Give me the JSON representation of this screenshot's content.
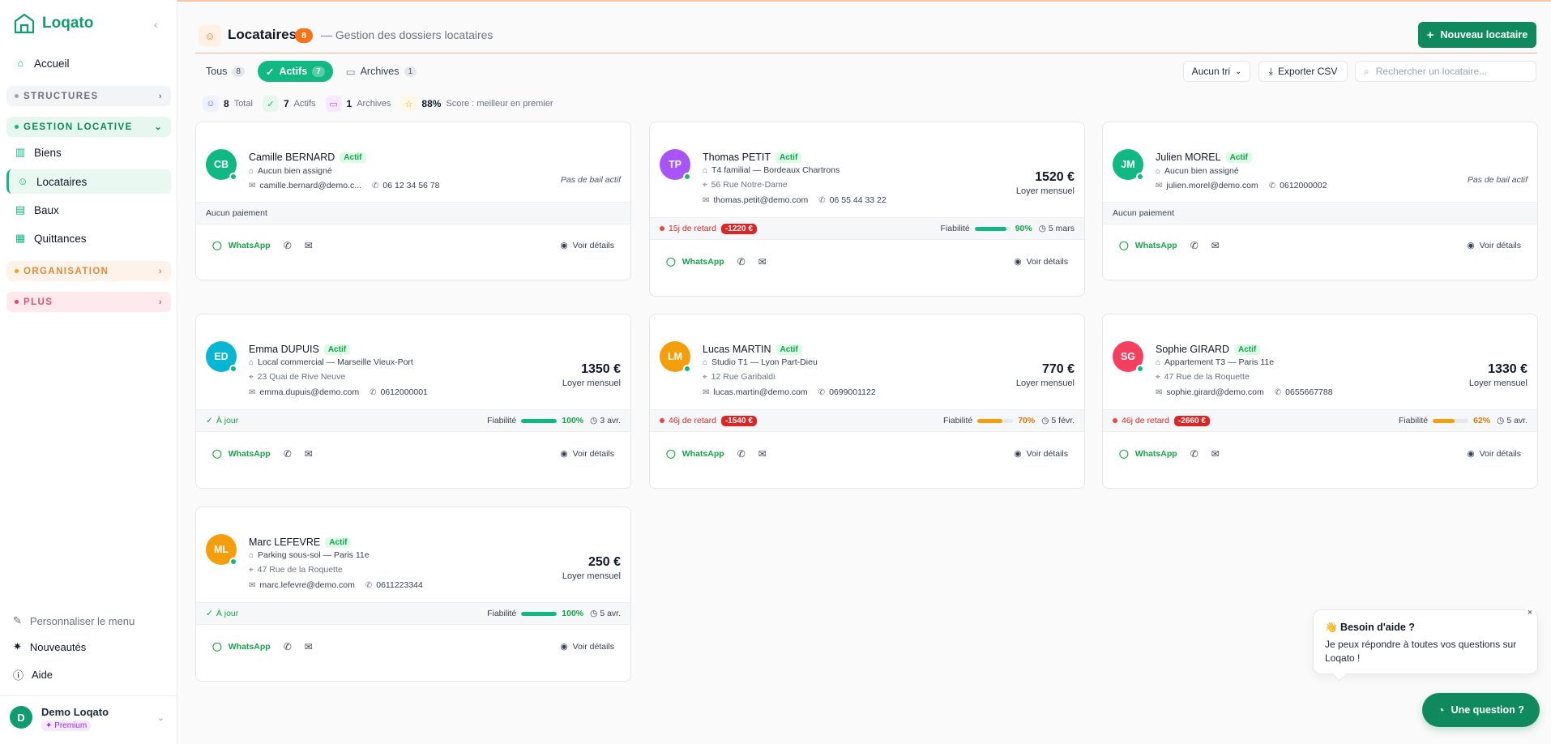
{
  "app": {
    "name": "Loqato"
  },
  "sidebar": {
    "accueil": "Accueil",
    "sections": {
      "structures": "STRUCTURES",
      "gestion": "GESTION LOCATIVE",
      "organisation": "ORGANISATION",
      "plus": "PLUS"
    },
    "items": [
      {
        "label": "Biens",
        "icon": "home-icon"
      },
      {
        "label": "Locataires",
        "icon": "users-icon",
        "active": true
      },
      {
        "label": "Baux",
        "icon": "document-icon"
      },
      {
        "label": "Quittances",
        "icon": "receipt-icon"
      }
    ],
    "bottom": {
      "customize": "Personnaliser le menu",
      "news": "Nouveautés",
      "help": "Aide"
    },
    "user": {
      "initial": "D",
      "name": "Demo Loqato",
      "plan": "✦ Premium"
    }
  },
  "header": {
    "title": "Locataires",
    "count": "8",
    "subtitle": "— Gestion des dossiers locataires",
    "new_button": "Nouveau locataire"
  },
  "tabs": [
    {
      "label": "Tous",
      "count": "8"
    },
    {
      "label": "Actifs",
      "count": "7",
      "active": true
    },
    {
      "label": "Archives",
      "count": "1"
    }
  ],
  "toolbar": {
    "sort": "Aucun tri",
    "export": "Exporter CSV",
    "search_placeholder": "Rechercher un locataire..."
  },
  "stats": {
    "total_value": "8",
    "total_label": "Total",
    "actifs_value": "7",
    "actifs_label": "Actifs",
    "archives_value": "1",
    "archives_label": "Archives",
    "score_value": "88%",
    "score_label": "Score : meilleur en premier"
  },
  "labels": {
    "actif": "Actif",
    "loyer": "Loyer mensuel",
    "no_bail": "Pas de bail actif",
    "no_payment": "Aucun paiement",
    "up_to_date": "À jour",
    "reliability": "Fiabilité",
    "whatsapp": "WhatsApp",
    "details": "Voir détails"
  },
  "tenants": [
    {
      "initials": "CB",
      "name": "Camille BERNARD",
      "color": "#10b981",
      "property": "Aucun bien assigné",
      "email": "camille.bernard@demo.c...",
      "phone": "06 12 34 56 78"
    },
    {
      "initials": "TP",
      "name": "Thomas PETIT",
      "color": "#a855f7",
      "property": "T4 familial — Bordeaux Chartrons",
      "address": "56 Rue Notre-Dame",
      "email": "thomas.petit@demo.com",
      "phone": "06 55 44 33 22",
      "rent": "1520 €",
      "late": "15j de retard",
      "debt": "-1220 €",
      "reliability": "90%",
      "reliability_value": 0.9,
      "due": "5 mars"
    },
    {
      "initials": "JM",
      "name": "Julien MOREL",
      "color": "#10b981",
      "property": "Aucun bien assigné",
      "email": "julien.morel@demo.com",
      "phone": "0612000002"
    },
    {
      "initials": "ED",
      "name": "Emma DUPUIS",
      "color": "#06b6d4",
      "property": "Local commercial — Marseille Vieux-Port",
      "address": "23 Quai de Rive Neuve",
      "email": "emma.dupuis@demo.com",
      "phone": "0612000001",
      "rent": "1350 €",
      "reliability": "100%",
      "reliability_value": 1.0,
      "due": "3 avr."
    },
    {
      "initials": "LM",
      "name": "Lucas MARTIN",
      "color": "#f59e0b",
      "property": "Studio T1 — Lyon Part-Dieu",
      "address": "12 Rue Garibaldi",
      "email": "lucas.martin@demo.com",
      "phone": "0699001122",
      "rent": "770 €",
      "late": "46j de retard",
      "debt": "-1540 €",
      "reliability": "70%",
      "reliability_value": 0.7,
      "due": "5 févr."
    },
    {
      "initials": "SG",
      "name": "Sophie GIRARD",
      "color": "#f43f5e",
      "property": "Appartement T3 — Paris 11e",
      "address": "47 Rue de la Roquette",
      "email": "sophie.girard@demo.com",
      "phone": "0655667788",
      "rent": "1330 €",
      "late": "46j de retard",
      "debt": "-2660 €",
      "reliability": "62%",
      "reliability_value": 0.62,
      "due": "5 avr."
    },
    {
      "initials": "ML",
      "name": "Marc LEFEVRE",
      "color": "#f59e0b",
      "property": "Parking sous-sol — Paris 11e",
      "address": "47 Rue de la Roquette",
      "email": "marc.lefevre@demo.com",
      "phone": "0611223344",
      "rent": "250 €",
      "reliability": "100%",
      "reliability_value": 1.0,
      "due": "5 avr."
    }
  ],
  "help": {
    "title": "👋 Besoin d'aide ?",
    "text": "Je peux répondre à toutes vos questions sur Loqato !",
    "close": "×",
    "ask_button": "Une question ?"
  },
  "colors": {
    "brand": "#0f8a5f",
    "accent": "#10b981",
    "warning": "#f59e0b",
    "danger": "#dc2626",
    "header_accent": "#f97316"
  }
}
